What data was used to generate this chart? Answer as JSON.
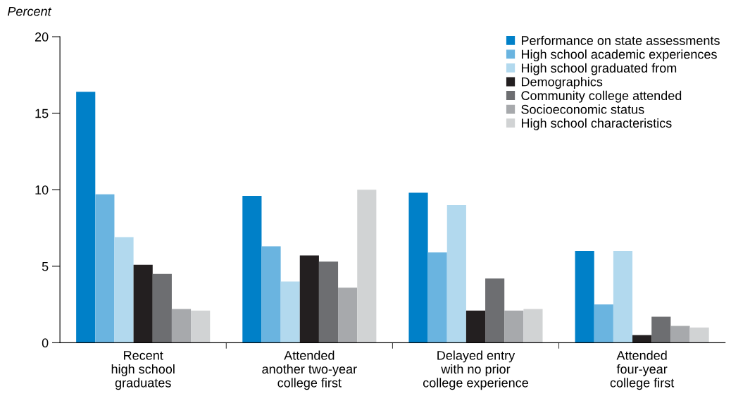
{
  "chart_data": {
    "type": "bar",
    "ylabel": "Percent",
    "categories": [
      "Recent\nhigh school\ngraduates",
      "Attended\nanother two-year\ncollege first",
      "Delayed entry\nwith no prior\ncollege experience",
      "Attended\nfour-year\ncollege first"
    ],
    "series": [
      {
        "name": "Performance on state assessments",
        "color": "#0080c8",
        "values": [
          16.4,
          9.6,
          9.8,
          6.0
        ]
      },
      {
        "name": "High school academic experiences",
        "color": "#6ab4e0",
        "values": [
          9.7,
          6.3,
          5.9,
          2.5
        ]
      },
      {
        "name": "High school graduated from",
        "color": "#b2d9ee",
        "values": [
          6.9,
          4.0,
          9.0,
          6.0
        ]
      },
      {
        "name": "Demographics",
        "color": "#231f20",
        "values": [
          5.1,
          5.7,
          2.1,
          0.5
        ]
      },
      {
        "name": "Community college attended",
        "color": "#6d6e71",
        "values": [
          4.5,
          5.3,
          4.2,
          1.7
        ]
      },
      {
        "name": "Socioeconomic status",
        "color": "#a7a9ac",
        "values": [
          2.2,
          3.6,
          2.1,
          1.1
        ]
      },
      {
        "name": "High school characteristics",
        "color": "#d1d3d4",
        "values": [
          2.1,
          10.0,
          2.2,
          1.0
        ]
      }
    ],
    "ylim": [
      0,
      20
    ],
    "yticks": [
      0,
      5,
      10,
      15,
      20
    ],
    "grid": false,
    "legend": "top right"
  }
}
